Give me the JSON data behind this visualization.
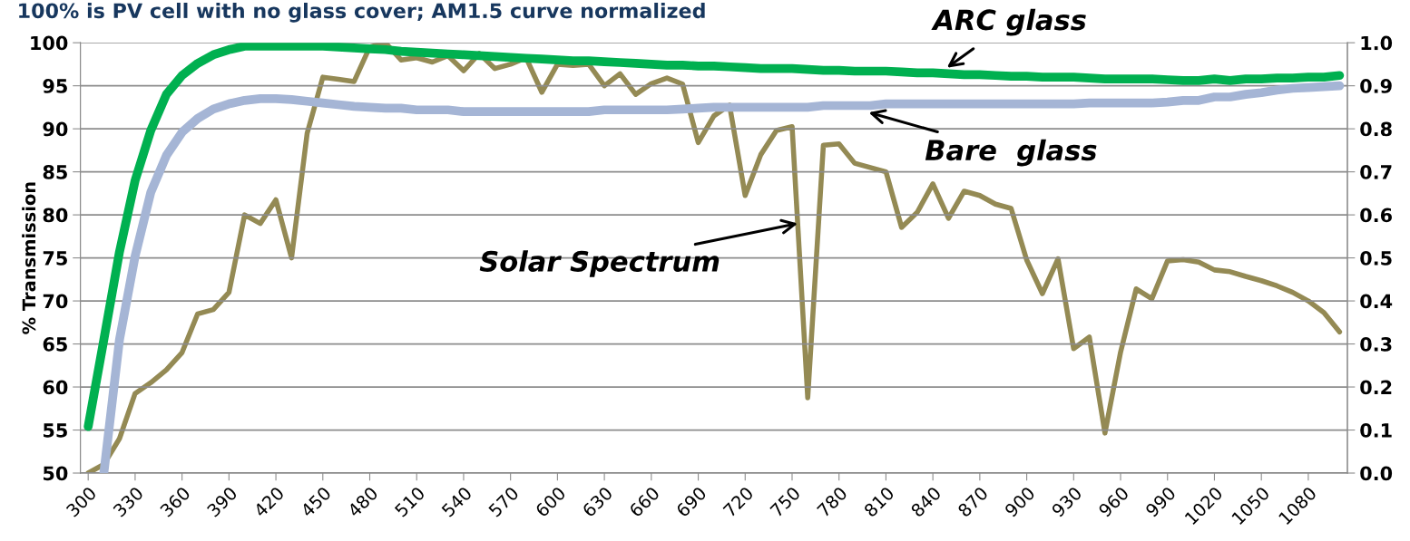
{
  "chart_data": {
    "type": "line",
    "title": "100% is PV cell with no glass cover; AM1.5 curve normalized",
    "ylabel": "% Transmission",
    "x": [
      300,
      310,
      320,
      330,
      340,
      350,
      360,
      370,
      380,
      390,
      400,
      410,
      420,
      430,
      440,
      450,
      460,
      470,
      480,
      490,
      500,
      510,
      520,
      530,
      540,
      550,
      560,
      570,
      580,
      590,
      600,
      610,
      620,
      630,
      640,
      650,
      660,
      670,
      680,
      690,
      700,
      710,
      720,
      730,
      740,
      750,
      760,
      770,
      780,
      790,
      800,
      810,
      820,
      830,
      840,
      850,
      860,
      870,
      880,
      890,
      900,
      910,
      920,
      930,
      940,
      950,
      960,
      970,
      980,
      990,
      1000,
      1010,
      1020,
      1030,
      1040,
      1050,
      1060,
      1070,
      1080,
      1090,
      1100
    ],
    "series": [
      {
        "color": "#a5b5d5",
        "values": [
          null,
          50.0,
          65.5,
          75.2,
          82.6,
          86.9,
          89.6,
          91.2,
          92.3,
          92.9,
          93.3,
          93.5,
          93.5,
          93.4,
          93.2,
          93.0,
          92.8,
          92.6,
          92.5,
          92.4,
          92.4,
          92.2,
          92.2,
          92.2,
          92.0,
          92.0,
          92.0,
          92.0,
          92.0,
          92.0,
          92.0,
          92.0,
          92.0,
          92.2,
          92.2,
          92.2,
          92.2,
          92.2,
          92.3,
          92.4,
          92.5,
          92.5,
          92.5,
          92.5,
          92.5,
          92.5,
          92.5,
          92.7,
          92.7,
          92.7,
          92.7,
          92.9,
          92.9,
          92.9,
          92.9,
          92.9,
          92.9,
          92.9,
          92.9,
          92.9,
          92.9,
          92.9,
          92.9,
          92.9,
          93.0,
          93.0,
          93.0,
          93.0,
          93.0,
          93.1,
          93.3,
          93.3,
          93.7,
          93.7,
          94.0,
          94.2,
          94.5,
          94.7,
          94.8,
          94.9,
          95.0
        ]
      },
      {
        "color": "#00b050",
        "values": [
          55.4,
          65.5,
          75.7,
          84.0,
          89.8,
          94.0,
          96.2,
          97.6,
          98.6,
          99.2,
          99.6,
          99.6,
          99.6,
          99.6,
          99.6,
          99.6,
          99.5,
          99.4,
          99.3,
          99.2,
          99.0,
          98.9,
          98.8,
          98.7,
          98.6,
          98.5,
          98.4,
          98.3,
          98.2,
          98.1,
          98.0,
          97.9,
          97.9,
          97.8,
          97.7,
          97.6,
          97.5,
          97.4,
          97.4,
          97.3,
          97.3,
          97.2,
          97.1,
          97.0,
          97.0,
          97.0,
          96.9,
          96.8,
          96.8,
          96.7,
          96.7,
          96.7,
          96.6,
          96.5,
          96.5,
          96.4,
          96.3,
          96.3,
          96.2,
          96.1,
          96.1,
          96.0,
          96.0,
          96.0,
          95.9,
          95.8,
          95.8,
          95.8,
          95.8,
          95.7,
          95.6,
          95.6,
          95.8,
          95.6,
          95.8,
          95.8,
          95.9,
          95.9,
          96.0,
          96.0,
          96.2
        ]
      },
      {
        "color": "#948a54",
        "axis": "y2",
        "values": [
          0.0,
          0.02,
          0.08,
          0.185,
          0.21,
          0.24,
          0.28,
          0.37,
          0.38,
          0.42,
          0.6,
          0.58,
          0.635,
          0.5,
          0.79,
          0.92,
          0.915,
          0.91,
          0.99,
          1.0,
          0.96,
          0.965,
          0.955,
          0.97,
          0.935,
          0.975,
          0.94,
          0.95,
          0.965,
          0.885,
          0.95,
          0.947,
          0.95,
          0.9,
          0.928,
          0.88,
          0.905,
          0.918,
          0.904,
          0.768,
          0.83,
          0.855,
          0.645,
          0.74,
          0.796,
          0.805,
          0.175,
          0.762,
          0.765,
          0.72,
          0.71,
          0.7,
          0.571,
          0.606,
          0.672,
          0.592,
          0.655,
          0.645,
          0.625,
          0.615,
          0.495,
          0.417,
          0.498,
          0.289,
          0.316,
          0.093,
          0.281,
          0.428,
          0.405,
          0.493,
          0.496,
          0.49,
          0.472,
          0.468,
          0.457,
          0.447,
          0.435,
          0.42,
          0.4,
          0.373,
          0.328
        ]
      }
    ],
    "xlim": [
      295,
      1105
    ],
    "xticks": [
      300,
      330,
      360,
      390,
      420,
      450,
      480,
      510,
      540,
      570,
      600,
      630,
      660,
      690,
      720,
      750,
      780,
      810,
      840,
      870,
      900,
      930,
      960,
      990,
      1020,
      1050,
      1080
    ],
    "ylim": [
      50,
      100
    ],
    "yticks": [
      50,
      55,
      60,
      65,
      70,
      75,
      80,
      85,
      90,
      95,
      100
    ],
    "y2lim": [
      0,
      1
    ],
    "y2ticks": [
      {
        "value": 0,
        "label": "0.0"
      },
      {
        "value": 0.1,
        "label": "0.1"
      },
      {
        "value": 0.2,
        "label": "0.2"
      },
      {
        "value": 0.3,
        "label": "0.3"
      },
      {
        "value": 0.4,
        "label": "0.4"
      },
      {
        "value": 0.5,
        "label": "0.5"
      },
      {
        "value": 0.6,
        "label": "0.6"
      },
      {
        "value": 0.7,
        "label": "0.7"
      },
      {
        "value": 0.8,
        "label": "0.8"
      },
      {
        "value": 0.9,
        "label": "0.9"
      },
      {
        "value": 1,
        "label": "1.0"
      }
    ],
    "grid": "y",
    "line_style": "solid",
    "marker": "none",
    "annotations": [
      {
        "text": "ARC glass",
        "x": 849,
        "y": 97.1
      },
      {
        "text": "Bare  glass",
        "x": 799,
        "y": 91.9
      },
      {
        "text": "Solar Spectrum",
        "x": 753.6,
        "y": 79.0
      }
    ]
  }
}
